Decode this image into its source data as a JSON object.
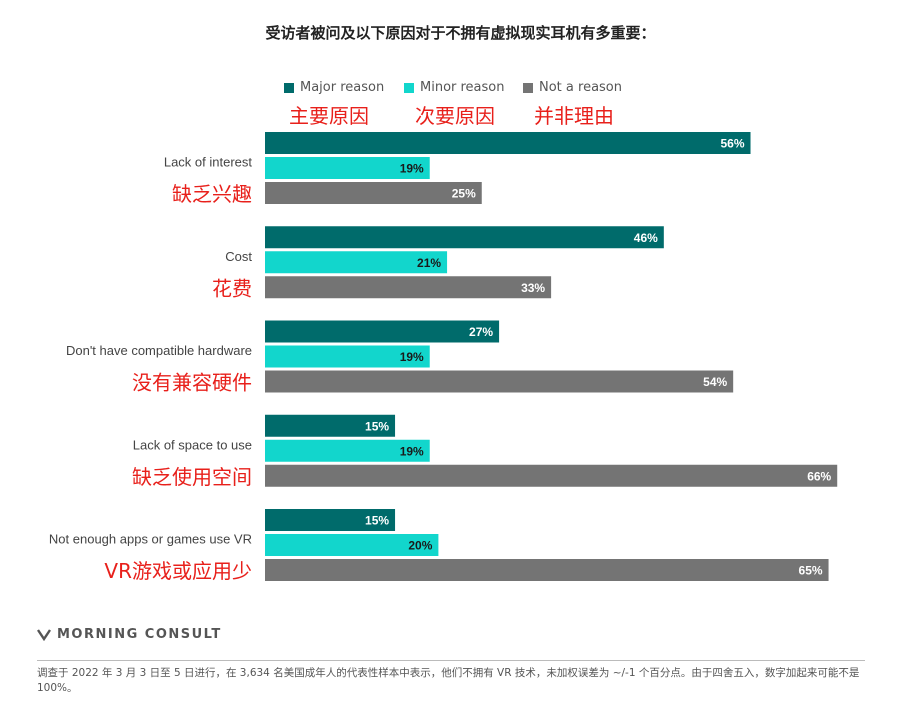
{
  "title": "受访者被问及以下原因对于不拥有虚拟现实耳机有多重要：",
  "legend": [
    {
      "label": "Major reason",
      "zh": "主要原因",
      "color": "#006b6b"
    },
    {
      "label": "Minor reason",
      "zh": "次要原因",
      "color": "#12d6cc"
    },
    {
      "label": "Not a reason",
      "zh": "并非理由",
      "color": "#747474"
    }
  ],
  "chart_data": {
    "type": "bar",
    "orientation": "horizontal",
    "categories": [
      "Lack of interest",
      "Cost",
      "Don't have compatible hardware",
      "Lack of space to use",
      "Not enough apps or games use VR"
    ],
    "categories_zh": [
      "缺乏兴趣",
      "花费",
      "没有兼容硬件",
      "缺乏使用空间",
      "VR游戏或应用少"
    ],
    "series": [
      {
        "name": "Major reason",
        "color": "#006b6b",
        "values": [
          56,
          46,
          27,
          15,
          15
        ]
      },
      {
        "name": "Minor reason",
        "color": "#12d6cc",
        "values": [
          19,
          21,
          19,
          19,
          20
        ]
      },
      {
        "name": "Not a reason",
        "color": "#747474",
        "values": [
          25,
          33,
          54,
          66,
          65
        ]
      }
    ],
    "value_suffix": "%",
    "xlim": [
      0,
      66
    ],
    "grid": false,
    "legend_position": "top"
  },
  "brand": "MORNING CONSULT",
  "footnote": "调查于 2022 年 3 月 3 日至 5 日进行，在 3,634 名美国成年人的代表性样本中表示，他们不拥有 VR 技术，未加权误差为 ~/-1 个百分点。由于四舍五入，数字加起来可能不是 100%。"
}
